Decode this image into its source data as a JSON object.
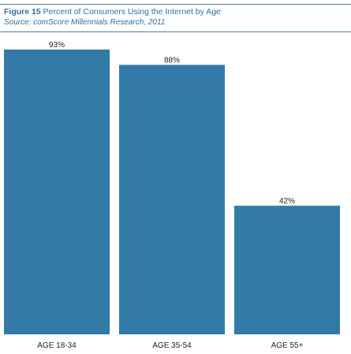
{
  "header": {
    "figure_label": "Figure 15",
    "title": "Percent of Consumers Using the Internet by Age",
    "source": "Source: comScore Millennials Research, 2011"
  },
  "colors": {
    "bar": "#327aa8",
    "rule": "#4d7fa8",
    "title": "#2f6fa0"
  },
  "chart_data": {
    "type": "bar",
    "title": "Percent of Consumers Using the Internet by Age",
    "categories": [
      "AGE 18-34",
      "AGE 35-54",
      "AGE 55+"
    ],
    "values": [
      93,
      88,
      42
    ],
    "data_labels": [
      "93%",
      "88%",
      "42%"
    ],
    "ylim": [
      0,
      93
    ],
    "grid": false
  }
}
